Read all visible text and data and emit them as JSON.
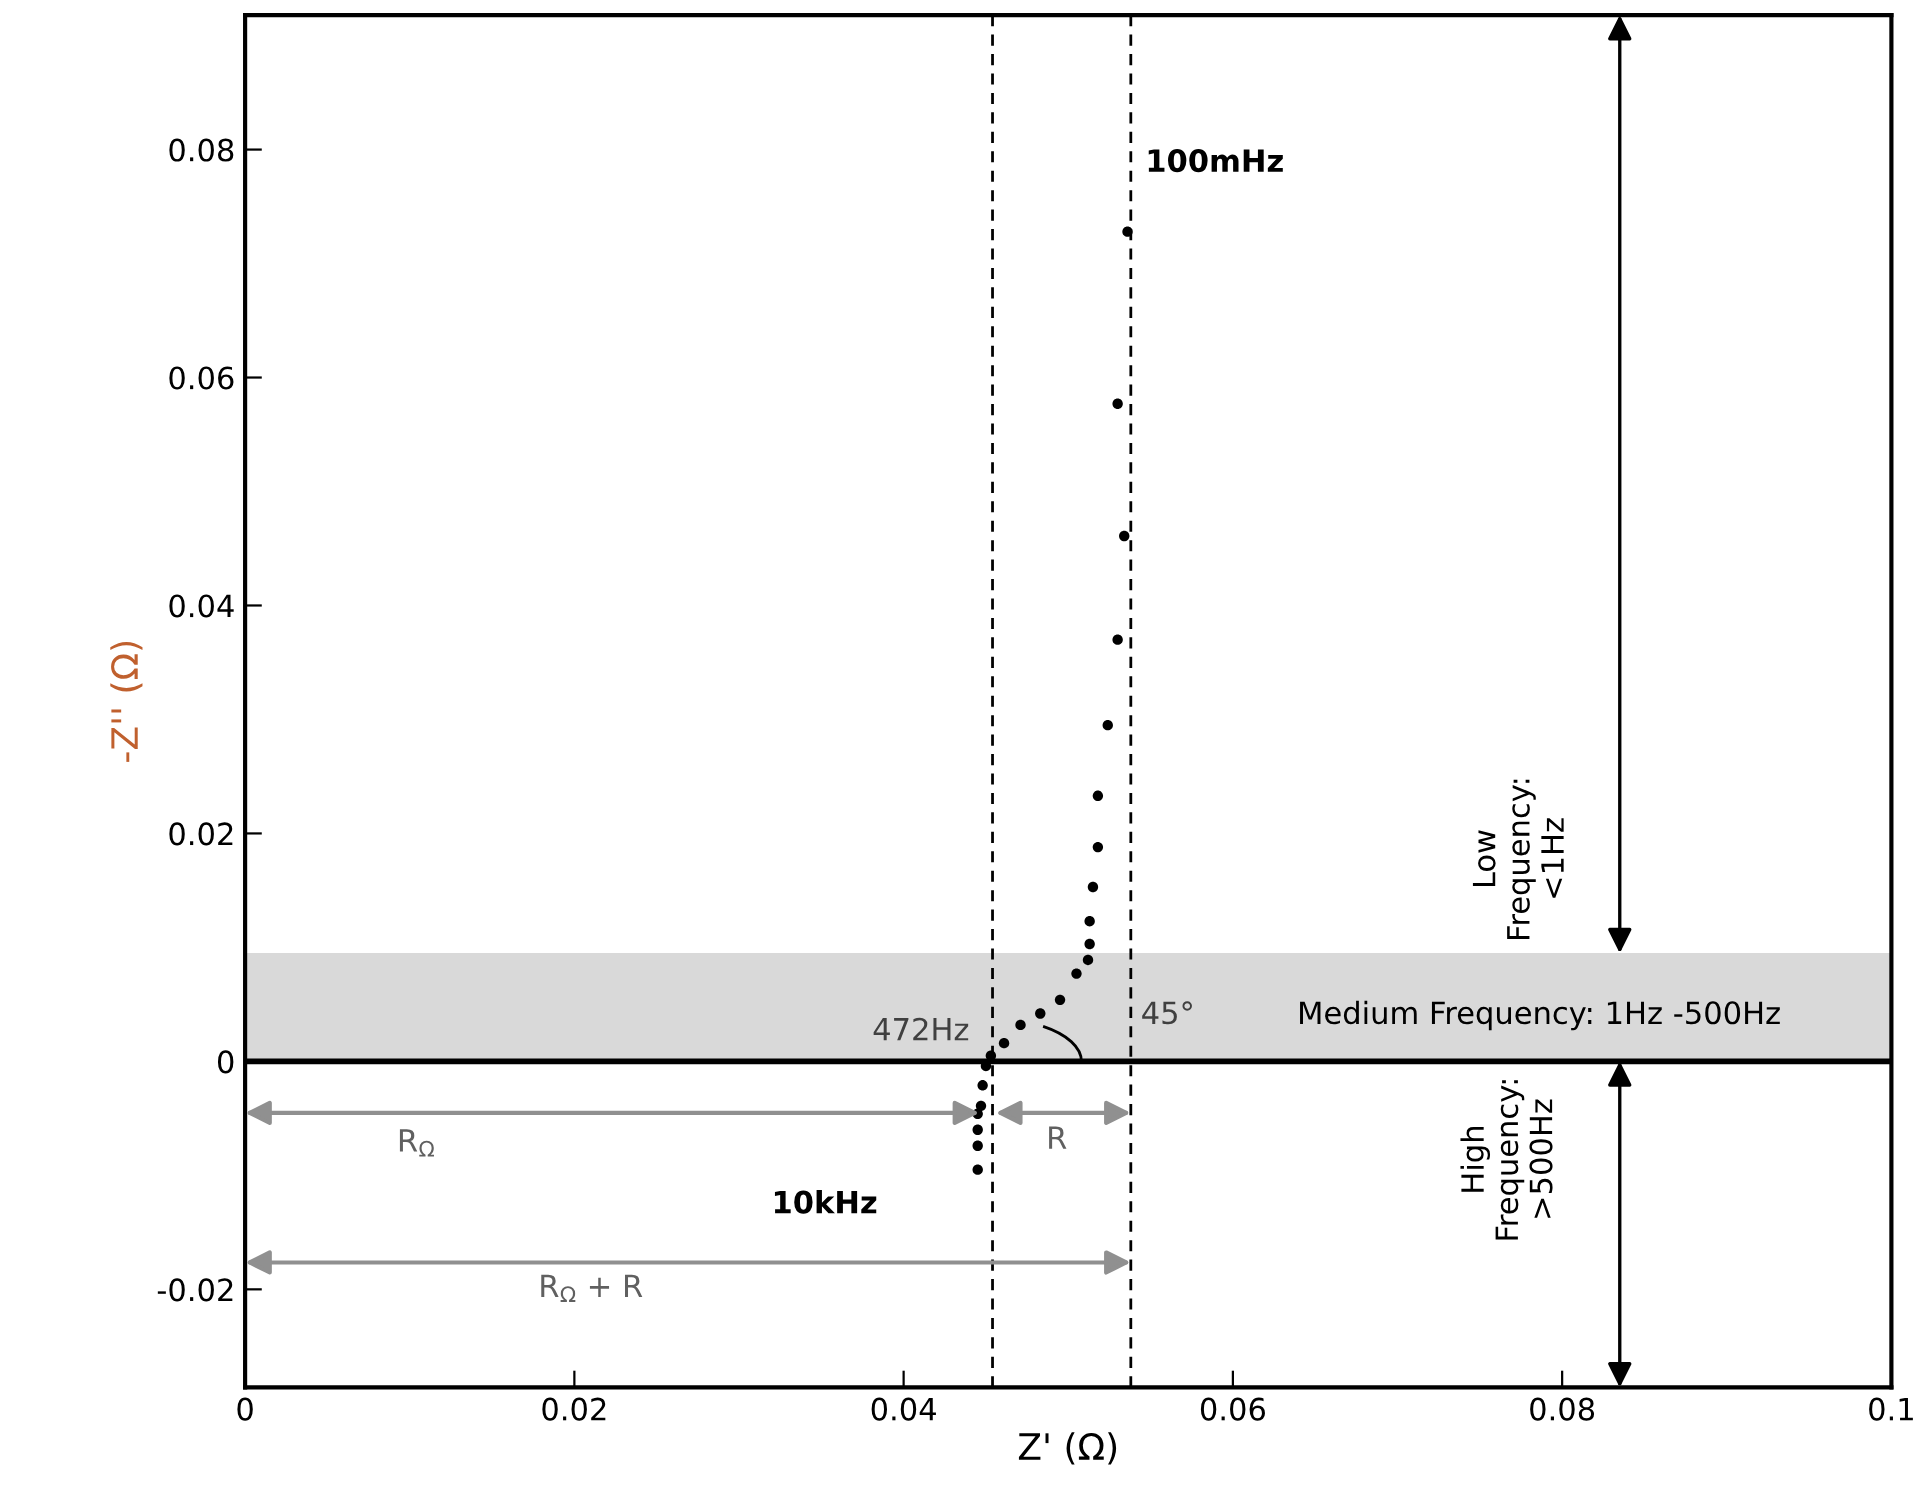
{
  "chart_data": {
    "type": "scatter",
    "xlabel": "Z' (Ω)",
    "ylabel": "-Z'' (Ω)",
    "x": [
      0.0536,
      0.053,
      0.0534,
      0.053,
      0.0524,
      0.0518,
      0.0518,
      0.0515,
      0.0513,
      0.0513,
      0.0512,
      0.0505,
      0.0495,
      0.0483,
      0.0471,
      0.0461,
      0.0453,
      0.045,
      0.0448,
      0.0447,
      0.0445,
      0.0445,
      0.0445,
      0.0445
    ],
    "series": [
      {
        "color": "#000000",
        "values": [
          0.0728,
          0.0577,
          0.0461,
          0.037,
          0.0295,
          0.0233,
          0.0188,
          0.0153,
          0.0123,
          0.0103,
          0.0089,
          0.0077,
          0.0054,
          0.0042,
          0.0032,
          0.0016,
          0.0005,
          -0.0004,
          -0.0021,
          -0.0039,
          -0.0046,
          -0.006,
          -0.0074,
          -0.0095
        ]
      }
    ],
    "marker": "circle",
    "grid": false,
    "xlim": [
      0,
      0.1
    ],
    "xticks": [
      {
        "value": 0,
        "label": "0"
      },
      0.02,
      0.04,
      0.06,
      0.08,
      0.1
    ],
    "ylim": [
      -0.0286,
      0.0918
    ],
    "yticks": [
      {
        "value": -0.02,
        "label": "-0.02"
      },
      {
        "value": 0,
        "label": "0"
      },
      0.02,
      0.04,
      0.06,
      0.08
    ],
    "ref_lines": [
      {
        "axis": "x",
        "value": 0.0454,
        "color": "#000000",
        "line_style": "dashed"
      },
      {
        "axis": "x",
        "value": 0.0538,
        "color": "#000000",
        "line_style": "dashed"
      },
      {
        "axis": "y",
        "value": 0,
        "color": "#000000",
        "line_style": "solid"
      }
    ],
    "bands": [
      {
        "axis": "y",
        "from": 0,
        "to": 0.0095,
        "color": "#d9d9d9"
      }
    ],
    "annotations": [
      "100mHz",
      "10kHz",
      "472Hz",
      "45°",
      "Medium Frequency: 1Hz -500Hz",
      "Low\nFrequency:\n<1Hz",
      "High\nFrequency:\n>500Hz",
      "R$_{Ω}$",
      "R",
      "R$_{Ω}$ + R"
    ]
  }
}
